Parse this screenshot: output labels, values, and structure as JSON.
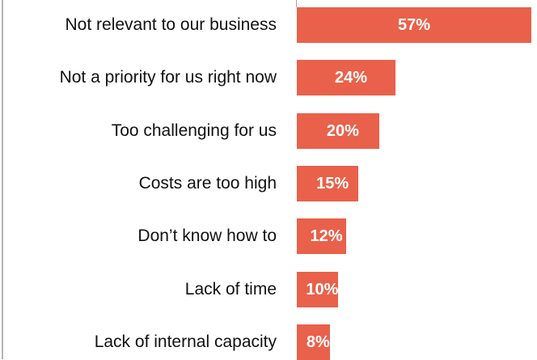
{
  "chart_data": {
    "type": "bar",
    "orientation": "horizontal",
    "categories": [
      "Not relevant to our business",
      "Not a priority for us right now",
      "Too challenging for us",
      "Costs are too high",
      "Don’t know how to",
      "Lack of time",
      "Lack of internal capacity"
    ],
    "values": [
      57,
      24,
      20,
      15,
      12,
      10,
      8
    ],
    "value_labels": [
      "57%",
      "24%",
      "20%",
      "15%",
      "12%",
      "10%",
      "8%"
    ],
    "color": "#e9614a",
    "xlim": [
      0,
      57
    ]
  }
}
